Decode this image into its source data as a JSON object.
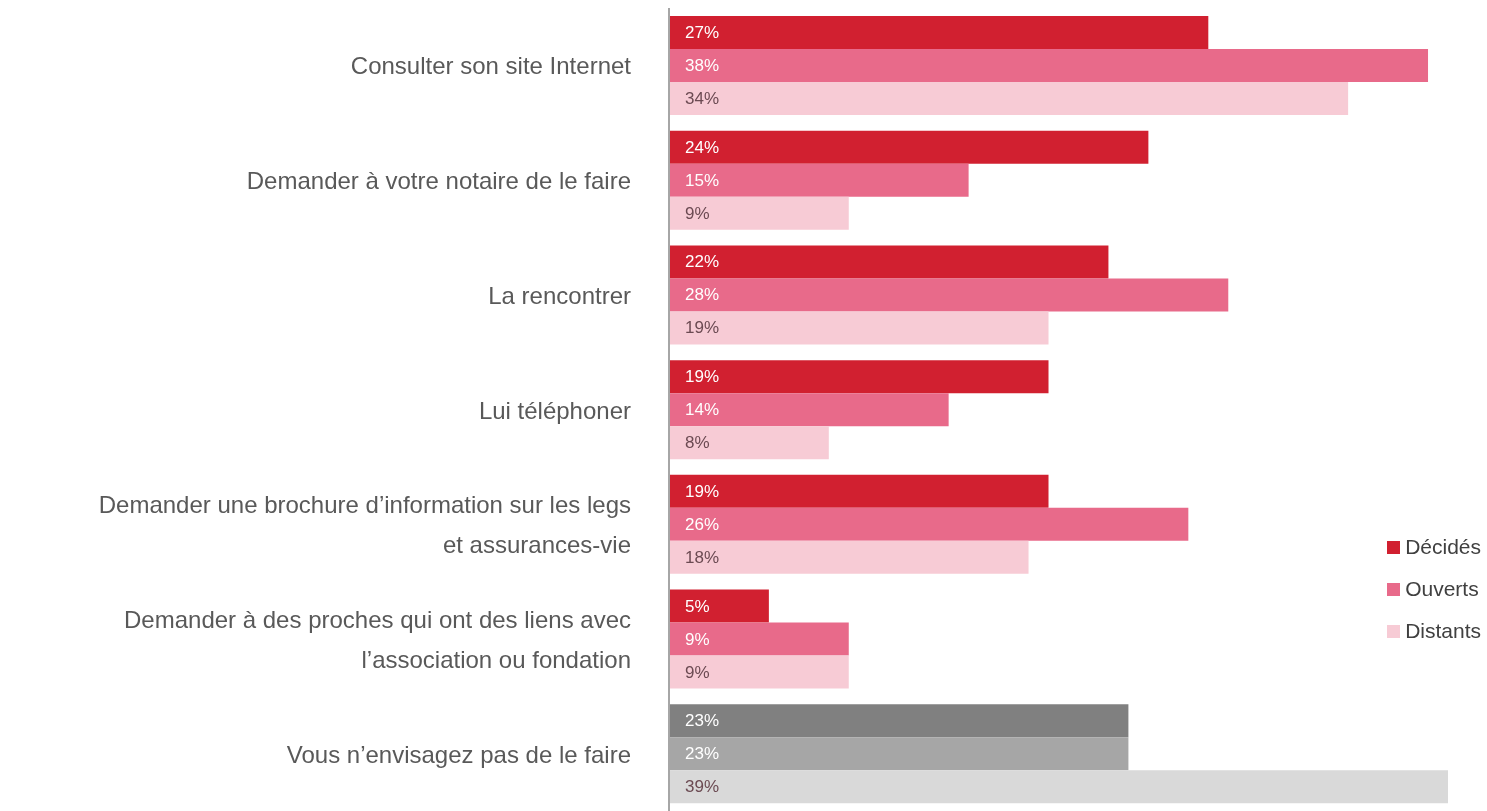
{
  "chart_data": {
    "type": "bar",
    "orientation": "horizontal",
    "categories": [
      "Consulter son site Internet",
      "Demander à votre notaire de le faire",
      "La rencontrer",
      "Lui téléphoner",
      "Demander une brochure d’information sur les legs et assurances-vie",
      "Demander à des proches qui ont des liens avec l’association ou fondation",
      "Vous n’envisagez pas de le faire"
    ],
    "series": [
      {
        "name": "Décidés",
        "color": "#d12030",
        "colors": [
          "#d12030",
          "#d12030",
          "#d12030",
          "#d12030",
          "#d12030",
          "#d12030",
          "#808080"
        ],
        "values": [
          27,
          24,
          22,
          19,
          19,
          5,
          23
        ],
        "value_labels": [
          "27%",
          "24%",
          "22%",
          "19%",
          "19%",
          "5%",
          "23%"
        ]
      },
      {
        "name": "Ouverts",
        "color": "#e86a8a",
        "colors": [
          "#e86a8a",
          "#e86a8a",
          "#e86a8a",
          "#e86a8a",
          "#e86a8a",
          "#e86a8a",
          "#a6a6a6"
        ],
        "values": [
          38,
          15,
          28,
          14,
          26,
          9,
          23
        ],
        "value_labels": [
          "38%",
          "15%",
          "28%",
          "14%",
          "26%",
          "9%",
          "23%"
        ]
      },
      {
        "name": "Distants",
        "color": "#f7cbd5",
        "colors": [
          "#f7cbd5",
          "#f7cbd5",
          "#f7cbd5",
          "#f7cbd5",
          "#f7cbd5",
          "#f7cbd5",
          "#d9d9d9"
        ],
        "values": [
          34,
          9,
          19,
          8,
          18,
          9,
          39
        ],
        "value_labels": [
          "34%",
          "9%",
          "19%",
          "8%",
          "18%",
          "9%",
          "39%"
        ]
      }
    ],
    "legend": "right",
    "grid": false
  }
}
